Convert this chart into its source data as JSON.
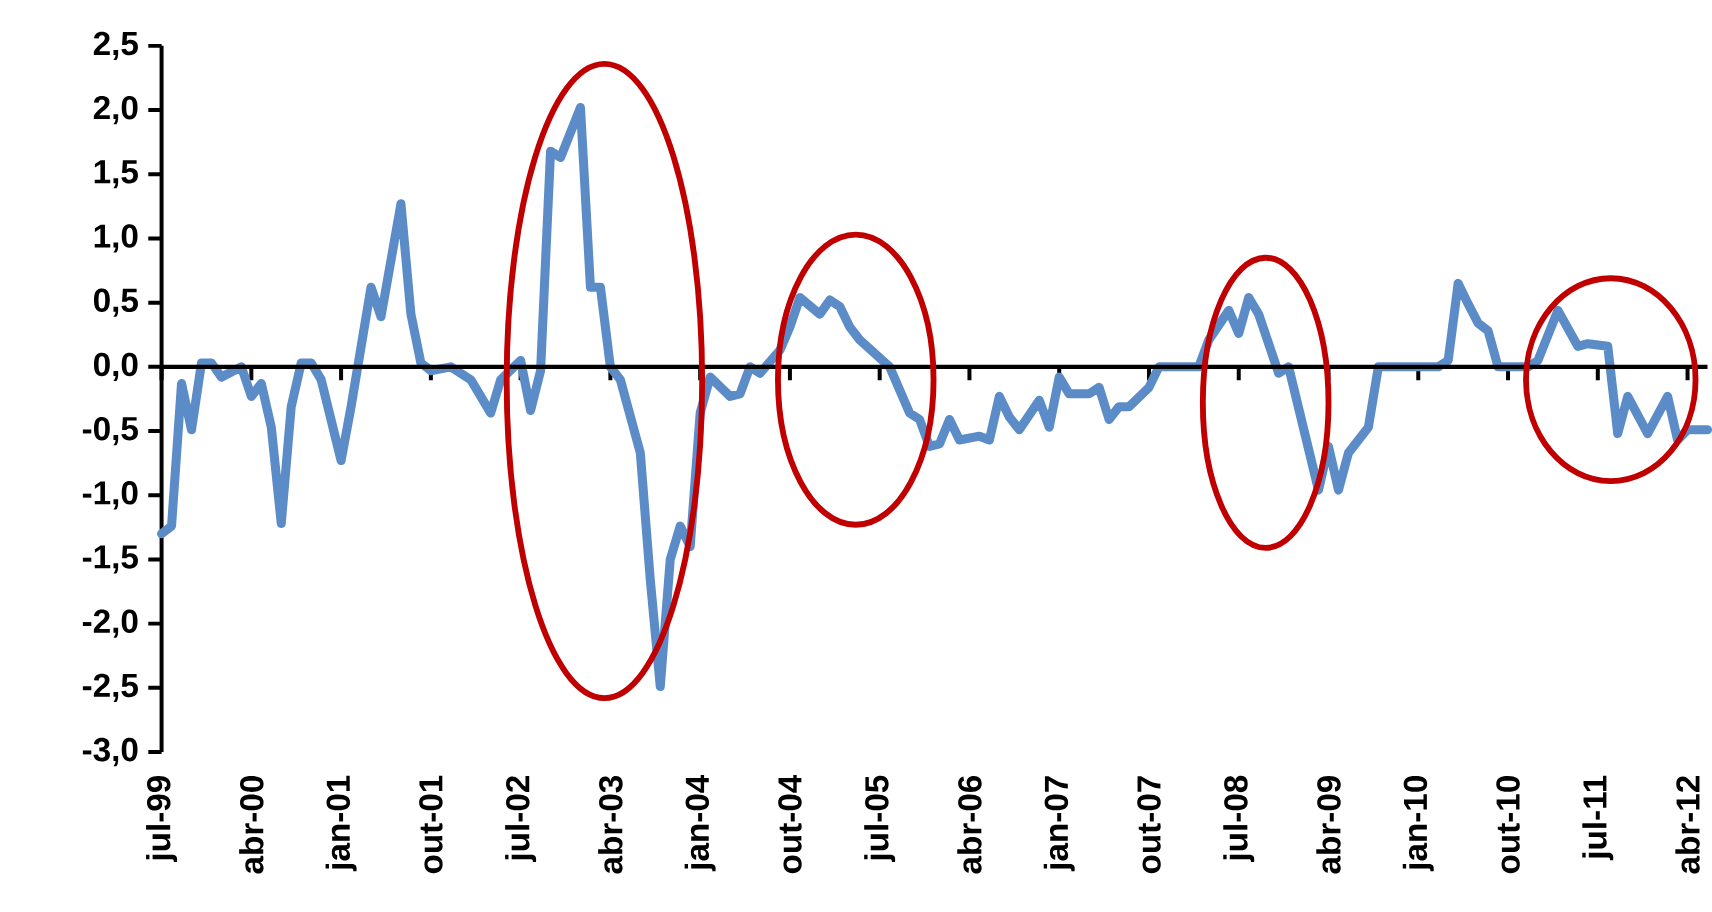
{
  "chart_data": {
    "type": "line",
    "x": [
      "1999-07",
      "1999-08",
      "1999-09",
      "1999-10",
      "1999-11",
      "1999-12",
      "2000-01",
      "2000-03",
      "2000-04",
      "2000-05",
      "2000-06",
      "2000-07",
      "2000-08",
      "2000-09",
      "2000-10",
      "2000-11",
      "2001-01",
      "2001-02",
      "2001-04",
      "2001-05",
      "2001-07",
      "2001-08",
      "2001-09",
      "2001-10",
      "2001-12",
      "2002-02",
      "2002-04",
      "2002-05",
      "2002-07",
      "2002-08",
      "2002-09",
      "2002-10",
      "2002-11",
      "2003-01",
      "2003-02",
      "2003-03",
      "2003-04",
      "2003-05",
      "2003-07",
      "2003-08",
      "2003-09",
      "2003-10",
      "2003-11",
      "2003-12",
      "2004-01",
      "2004-02",
      "2004-04",
      "2004-05",
      "2004-06",
      "2004-07",
      "2004-09",
      "2004-10",
      "2004-11",
      "2005-01",
      "2005-02",
      "2005-03",
      "2005-04",
      "2005-05",
      "2005-08",
      "2005-10",
      "2005-11",
      "2005-12",
      "2006-01",
      "2006-02",
      "2006-03",
      "2006-05",
      "2006-06",
      "2006-07",
      "2006-08",
      "2006-09",
      "2006-11",
      "2006-12",
      "2007-01",
      "2007-02",
      "2007-04",
      "2007-05",
      "2007-06",
      "2007-07",
      "2007-08",
      "2007-10",
      "2007-11",
      "2008-01",
      "2008-03",
      "2008-04",
      "2008-06",
      "2008-07",
      "2008-08",
      "2008-09",
      "2008-11",
      "2008-12",
      "2009-03",
      "2009-04",
      "2009-05",
      "2009-06",
      "2009-08",
      "2009-09",
      "2010-03",
      "2010-04",
      "2010-05",
      "2010-06",
      "2010-07",
      "2010-08",
      "2010-09",
      "2010-12",
      "2011-01",
      "2011-03",
      "2011-05",
      "2011-06",
      "2011-08",
      "2011-09",
      "2011-10",
      "2011-12",
      "2012-02",
      "2012-03",
      "2012-04",
      "2012-06"
    ],
    "series": [
      {
        "color": "#5b8cc8",
        "values": [
          -1.3,
          -1.24,
          -0.13,
          -0.49,
          0.03,
          0.03,
          -0.08,
          0,
          -0.23,
          -0.13,
          -0.47,
          -1.22,
          -0.31,
          0.03,
          0.03,
          -0.1,
          -0.73,
          -0.31,
          0.62,
          0.39,
          1.27,
          0.41,
          0.03,
          -0.03,
          0,
          -0.1,
          -0.36,
          -0.1,
          0.05,
          -0.34,
          -0.03,
          1.68,
          1.63,
          2.02,
          0.62,
          0.62,
          0,
          -0.1,
          -0.67,
          -1.66,
          -2.49,
          -1.5,
          -1.24,
          -1.4,
          -0.36,
          -0.08,
          -0.23,
          -0.21,
          0,
          -0.05,
          0.13,
          0.31,
          0.54,
          0.41,
          0.52,
          0.47,
          0.31,
          0.21,
          0,
          -0.36,
          -0.41,
          -0.62,
          -0.6,
          -0.41,
          -0.57,
          -0.54,
          -0.57,
          -0.23,
          -0.39,
          -0.49,
          -0.26,
          -0.47,
          -0.08,
          -0.21,
          -0.21,
          -0.16,
          -0.41,
          -0.31,
          -0.31,
          -0.16,
          0,
          0,
          0,
          0.21,
          0.44,
          0.26,
          0.54,
          0.41,
          -0.05,
          0,
          -0.96,
          -0.62,
          -0.96,
          -0.67,
          -0.47,
          0,
          0,
          0.05,
          0.65,
          0.49,
          0.34,
          0.28,
          0,
          0,
          0.05,
          0.44,
          0.16,
          0.18,
          0.16,
          -0.52,
          -0.23,
          -0.52,
          -0.23,
          -0.57,
          -0.49,
          -0.49
        ]
      }
    ],
    "xlim": [
      "1999-07",
      "2012-06"
    ],
    "xticks": [
      {
        "value": "1999-07",
        "label": "jul-99"
      },
      {
        "value": "2000-04",
        "label": "abr-00"
      },
      {
        "value": "2001-01",
        "label": "jan-01"
      },
      {
        "value": "2001-10",
        "label": "out-01"
      },
      {
        "value": "2002-07",
        "label": "jul-02"
      },
      {
        "value": "2003-04",
        "label": "abr-03"
      },
      {
        "value": "2004-01",
        "label": "jan-04"
      },
      {
        "value": "2004-10",
        "label": "out-04"
      },
      {
        "value": "2005-07",
        "label": "jul-05"
      },
      {
        "value": "2006-04",
        "label": "abr-06"
      },
      {
        "value": "2007-01",
        "label": "jan-07"
      },
      {
        "value": "2007-10",
        "label": "out-07"
      },
      {
        "value": "2008-07",
        "label": "jul-08"
      },
      {
        "value": "2009-04",
        "label": "abr-09"
      },
      {
        "value": "2010-01",
        "label": "jan-10"
      },
      {
        "value": "2010-10",
        "label": "out-10"
      },
      {
        "value": "2011-07",
        "label": "jul-11"
      },
      {
        "value": "2012-04",
        "label": "abr-12"
      }
    ],
    "ylim": [
      -3.0,
      2.5
    ],
    "yticks": [
      {
        "value": -3.0,
        "label": "-3,0"
      },
      {
        "value": -2.5,
        "label": "-2,5"
      },
      {
        "value": -2.0,
        "label": "-2,0"
      },
      {
        "value": -1.5,
        "label": "-1,5"
      },
      {
        "value": -1.0,
        "label": "-1,0"
      },
      {
        "value": -0.5,
        "label": "-0,5"
      },
      {
        "value": 0,
        "label": "0,0"
      },
      {
        "value": 0.5,
        "label": "0,5"
      },
      {
        "value": 1.0,
        "label": "1,0"
      },
      {
        "value": 1.5,
        "label": "1,5"
      },
      {
        "value": 2.0,
        "label": "2,0"
      },
      {
        "value": 2.5,
        "label": "2,5"
      }
    ],
    "ref_lines": [
      {
        "axis": "y",
        "value": 0,
        "color": "#000000",
        "line_style": "solid"
      }
    ],
    "grid": false,
    "legend": false,
    "marker": "none",
    "line_style": "solid"
  }
}
